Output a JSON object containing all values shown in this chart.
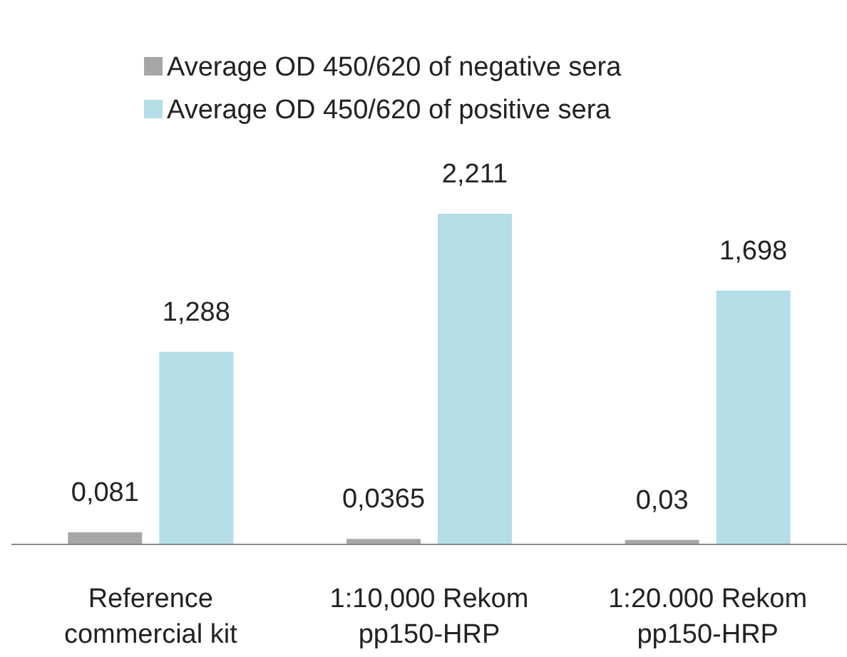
{
  "chart_data": {
    "type": "bar",
    "categories": [
      "Reference commercial kit",
      "1:10,000 Rekom pp150-HRP",
      "1:20.000 Rekom pp150-HRP"
    ],
    "series": [
      {
        "name": "Average OD 450/620 of negative sera",
        "color": "#a6a6a6",
        "values": [
          0.081,
          0.0365,
          0.03
        ],
        "value_labels": [
          "0,081",
          "0,0365",
          "0,03"
        ]
      },
      {
        "name": "Average OD 450/620 of positive sera",
        "color": "#b4dde7",
        "values": [
          1.288,
          2.211,
          1.698
        ],
        "value_labels": [
          "1,288",
          "2,211",
          "1,698"
        ]
      }
    ],
    "legend": "top",
    "grid": false
  }
}
